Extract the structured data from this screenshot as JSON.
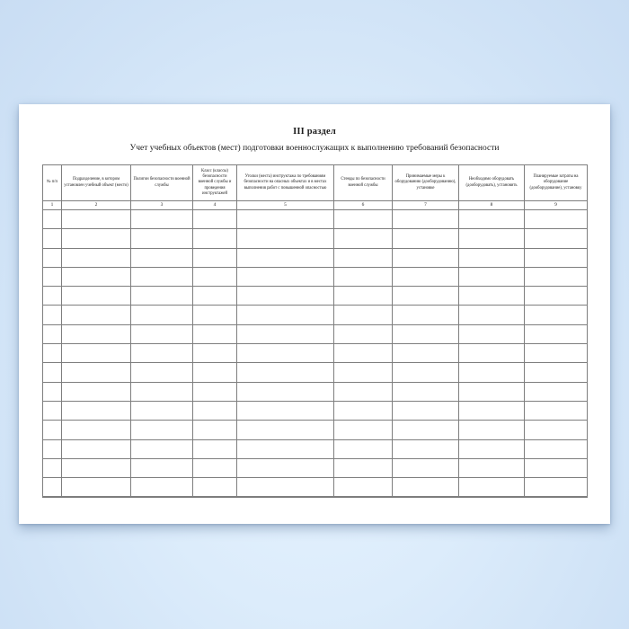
{
  "document": {
    "section_title": "III раздел",
    "table_title": "Учет учебных объектов (мест) подготовки военнослужащих к выполнению требований безопасности",
    "table": {
      "columns": [
        {
          "num": "1",
          "header": "№ п/п"
        },
        {
          "num": "2",
          "header": "Подразделение, в котором установлен учебный объект (место)"
        },
        {
          "num": "3",
          "header": "Полигон безопасности военной службы"
        },
        {
          "num": "4",
          "header": "Класс (классы) безопасности военной службы и проведения инструктажей"
        },
        {
          "num": "5",
          "header": "Уголки (места) инструктажа по требованиям безопасности на опасных объектах и в местах выполнения работ с повышенной опасностью"
        },
        {
          "num": "6",
          "header": "Стенды по безопасности военной службы"
        },
        {
          "num": "7",
          "header": "Принимаемые меры к оборудованию (дооборудованию), установке"
        },
        {
          "num": "8",
          "header": "Необходимо оборудовать (дооборудовать), установить"
        },
        {
          "num": "9",
          "header": "Планируемые затраты на оборудование (дооборудование), установку"
        }
      ],
      "empty_rows": 15,
      "cell_values": []
    },
    "colors": {
      "page_background": "#ffffff",
      "backdrop_blue": "#d5e7fa",
      "table_border": "#7e7e7e",
      "text": "#1c1c1c"
    }
  }
}
